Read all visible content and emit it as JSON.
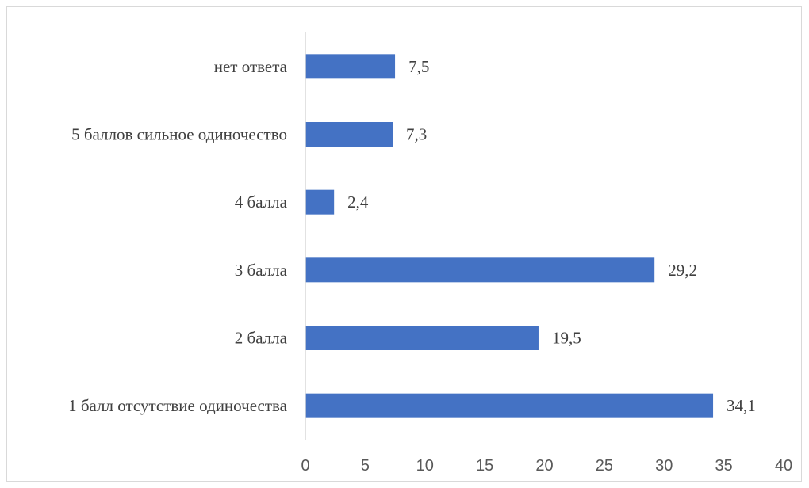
{
  "chart_data": {
    "type": "bar",
    "orientation": "horizontal",
    "categories": [
      "нет ответа",
      "5 баллов сильное одиночество",
      "4 балла",
      "3 балла",
      "2 балла",
      "1 балл отсутствие одиночества"
    ],
    "values": [
      7.5,
      7.3,
      2.4,
      29.2,
      19.5,
      34.1
    ],
    "value_labels": [
      "7,5",
      "7,3",
      "2,4",
      "29,2",
      "19,5",
      "34,1"
    ],
    "xlim": [
      0,
      40
    ],
    "xticks": [
      0,
      5,
      10,
      15,
      20,
      25,
      30,
      35,
      40
    ],
    "bar_color": "#4472c4",
    "grid": false,
    "legend": "none"
  }
}
